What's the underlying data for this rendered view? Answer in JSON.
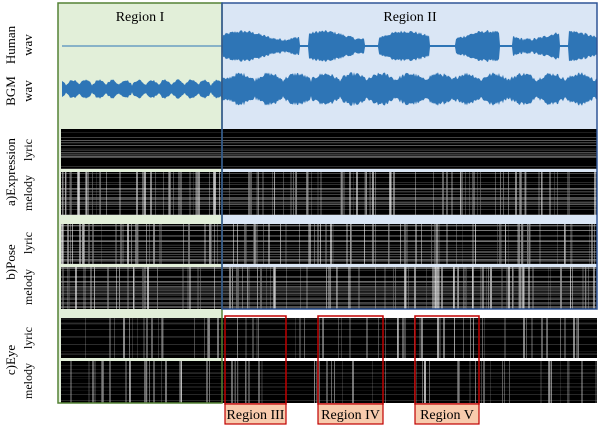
{
  "rows": {
    "human": "Human",
    "bgm": "BGM",
    "wav": "wav",
    "expression": "a)Expression",
    "pose": "b)Pose",
    "eye": "c)Eye",
    "lyric": "lyric",
    "melody": "melody"
  },
  "regions": {
    "r1": "Region I",
    "r2": "Region II",
    "r3": "Region III",
    "r4": "Region IV",
    "r5": "Region V"
  },
  "colors": {
    "waveform": "#2e75b6",
    "region1_fill": "#e2efd9",
    "region1_border": "#548235",
    "region2_fill": "#dae6f5",
    "region2_border": "#2f5597",
    "highlight_border": "#c00000",
    "highlight_label_fill": "#f8cbad"
  }
}
